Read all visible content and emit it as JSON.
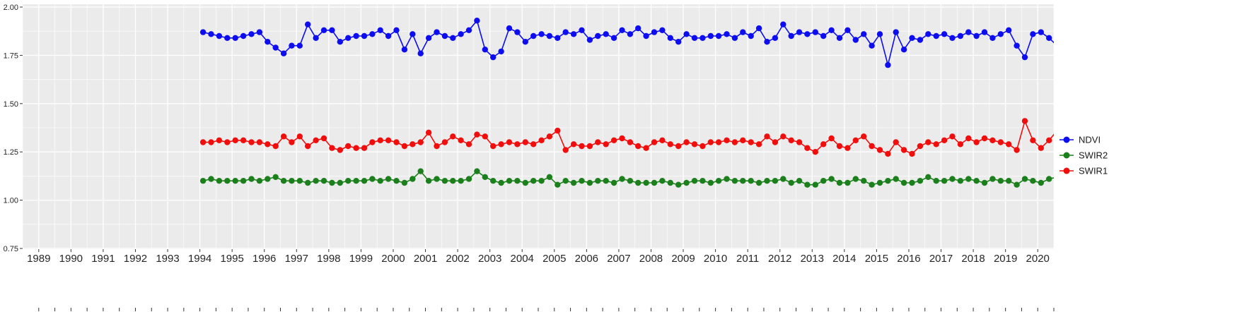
{
  "chart_data": {
    "type": "line",
    "title": "",
    "xlabel": "",
    "ylabel": "",
    "xlim": [
      1988.5,
      2020.5
    ],
    "ylim": [
      0.75,
      2.0
    ],
    "x_major_ticks": [
      1989,
      1990,
      1991,
      1992,
      1993,
      1994,
      1995,
      1996,
      1997,
      1998,
      1999,
      2000,
      2001,
      2002,
      2003,
      2004,
      2005,
      2006,
      2007,
      2008,
      2009,
      2010,
      2011,
      2012,
      2013,
      2014,
      2015,
      2016,
      2017,
      2018,
      2019,
      2020
    ],
    "y_ticks": [
      0.75,
      1.0,
      1.25,
      1.5,
      1.75,
      2.0
    ],
    "y_tick_labels": [
      "0.75",
      "1.00",
      "1.25",
      "1.50",
      "1.75",
      "2.00"
    ],
    "grid": true,
    "legend_position": "right",
    "panel_bg": "#EBEBEB",
    "grid_color": "#FFFFFF",
    "axis_tick_color": "#333333",
    "tick_label_color": "#262626",
    "x": [
      1994.1,
      1994.35,
      1994.6,
      1994.85,
      1995.1,
      1995.35,
      1995.6,
      1995.85,
      1996.1,
      1996.35,
      1996.6,
      1996.85,
      1997.1,
      1997.35,
      1997.6,
      1997.85,
      1998.1,
      1998.35,
      1998.6,
      1998.85,
      1999.1,
      1999.35,
      1999.6,
      1999.85,
      2000.1,
      2000.35,
      2000.6,
      2000.85,
      2001.1,
      2001.35,
      2001.6,
      2001.85,
      2002.1,
      2002.35,
      2002.6,
      2002.85,
      2003.1,
      2003.35,
      2003.6,
      2003.85,
      2004.1,
      2004.35,
      2004.6,
      2004.85,
      2005.1,
      2005.35,
      2005.6,
      2005.85,
      2006.1,
      2006.35,
      2006.6,
      2006.85,
      2007.1,
      2007.35,
      2007.6,
      2007.85,
      2008.1,
      2008.35,
      2008.6,
      2008.85,
      2009.1,
      2009.35,
      2009.6,
      2009.85,
      2010.1,
      2010.35,
      2010.6,
      2010.85,
      2011.1,
      2011.35,
      2011.6,
      2011.85,
      2012.1,
      2012.35,
      2012.6,
      2012.85,
      2013.1,
      2013.35,
      2013.6,
      2013.85,
      2014.1,
      2014.35,
      2014.6,
      2014.85,
      2015.1,
      2015.35,
      2015.6,
      2015.85,
      2016.1,
      2016.35,
      2016.6,
      2016.85,
      2017.1,
      2017.35,
      2017.6,
      2017.85,
      2018.1,
      2018.35,
      2018.6,
      2018.85,
      2019.1,
      2019.35,
      2019.6,
      2019.85,
      2020.1,
      2020.35,
      2020.6
    ],
    "series": [
      {
        "name": "NDVI",
        "color": "#0D0DF2",
        "values": [
          1.87,
          1.86,
          1.85,
          1.84,
          1.84,
          1.85,
          1.86,
          1.87,
          1.82,
          1.79,
          1.76,
          1.8,
          1.8,
          1.91,
          1.84,
          1.88,
          1.88,
          1.82,
          1.84,
          1.85,
          1.85,
          1.86,
          1.88,
          1.85,
          1.88,
          1.78,
          1.86,
          1.76,
          1.84,
          1.87,
          1.85,
          1.84,
          1.86,
          1.88,
          1.93,
          1.78,
          1.74,
          1.77,
          1.89,
          1.87,
          1.82,
          1.85,
          1.86,
          1.85,
          1.84,
          1.87,
          1.86,
          1.88,
          1.83,
          1.85,
          1.86,
          1.84,
          1.88,
          1.86,
          1.89,
          1.85,
          1.87,
          1.88,
          1.84,
          1.82,
          1.86,
          1.84,
          1.84,
          1.85,
          1.85,
          1.86,
          1.84,
          1.87,
          1.85,
          1.89,
          1.82,
          1.84,
          1.91,
          1.85,
          1.87,
          1.86,
          1.87,
          1.85,
          1.88,
          1.84,
          1.88,
          1.83,
          1.86,
          1.8,
          1.86,
          1.7,
          1.87,
          1.78,
          1.84,
          1.83,
          1.86,
          1.85,
          1.86,
          1.84,
          1.85,
          1.87,
          1.85,
          1.87,
          1.84,
          1.86,
          1.88,
          1.8,
          1.74,
          1.86,
          1.87,
          1.84,
          1.8
        ]
      },
      {
        "name": "SWIR2",
        "color": "#1B801B",
        "values": [
          1.1,
          1.11,
          1.1,
          1.1,
          1.1,
          1.1,
          1.11,
          1.1,
          1.11,
          1.12,
          1.1,
          1.1,
          1.1,
          1.09,
          1.1,
          1.1,
          1.09,
          1.09,
          1.1,
          1.1,
          1.1,
          1.11,
          1.1,
          1.11,
          1.1,
          1.09,
          1.11,
          1.15,
          1.1,
          1.11,
          1.1,
          1.1,
          1.1,
          1.11,
          1.15,
          1.12,
          1.1,
          1.09,
          1.1,
          1.1,
          1.09,
          1.1,
          1.1,
          1.12,
          1.08,
          1.1,
          1.09,
          1.1,
          1.09,
          1.1,
          1.1,
          1.09,
          1.11,
          1.1,
          1.09,
          1.09,
          1.09,
          1.1,
          1.09,
          1.08,
          1.09,
          1.1,
          1.1,
          1.09,
          1.1,
          1.11,
          1.1,
          1.1,
          1.1,
          1.09,
          1.1,
          1.1,
          1.11,
          1.09,
          1.1,
          1.08,
          1.08,
          1.1,
          1.11,
          1.09,
          1.09,
          1.11,
          1.1,
          1.08,
          1.09,
          1.1,
          1.11,
          1.09,
          1.09,
          1.1,
          1.12,
          1.1,
          1.1,
          1.11,
          1.1,
          1.11,
          1.1,
          1.09,
          1.11,
          1.1,
          1.1,
          1.08,
          1.11,
          1.1,
          1.09,
          1.11,
          1.12
        ]
      },
      {
        "name": "SWIR1",
        "color": "#F20D0D",
        "values": [
          1.3,
          1.3,
          1.31,
          1.3,
          1.31,
          1.31,
          1.3,
          1.3,
          1.29,
          1.28,
          1.33,
          1.3,
          1.33,
          1.28,
          1.31,
          1.32,
          1.27,
          1.26,
          1.28,
          1.27,
          1.27,
          1.3,
          1.31,
          1.31,
          1.3,
          1.28,
          1.29,
          1.3,
          1.35,
          1.28,
          1.3,
          1.33,
          1.31,
          1.29,
          1.34,
          1.33,
          1.28,
          1.29,
          1.3,
          1.29,
          1.3,
          1.29,
          1.31,
          1.33,
          1.36,
          1.26,
          1.29,
          1.28,
          1.28,
          1.3,
          1.29,
          1.31,
          1.32,
          1.3,
          1.28,
          1.27,
          1.3,
          1.31,
          1.29,
          1.28,
          1.3,
          1.29,
          1.28,
          1.3,
          1.3,
          1.31,
          1.3,
          1.31,
          1.3,
          1.29,
          1.33,
          1.3,
          1.33,
          1.31,
          1.3,
          1.27,
          1.25,
          1.29,
          1.32,
          1.28,
          1.27,
          1.31,
          1.33,
          1.28,
          1.26,
          1.24,
          1.3,
          1.26,
          1.24,
          1.28,
          1.3,
          1.29,
          1.31,
          1.33,
          1.29,
          1.32,
          1.3,
          1.32,
          1.31,
          1.3,
          1.29,
          1.26,
          1.41,
          1.31,
          1.27,
          1.31,
          1.36
        ]
      }
    ],
    "legend": [
      {
        "label": "NDVI",
        "color": "#0D0DF2"
      },
      {
        "label": "SWIR2",
        "color": "#1B801B"
      },
      {
        "label": "SWIR1",
        "color": "#F20D0D"
      }
    ]
  }
}
